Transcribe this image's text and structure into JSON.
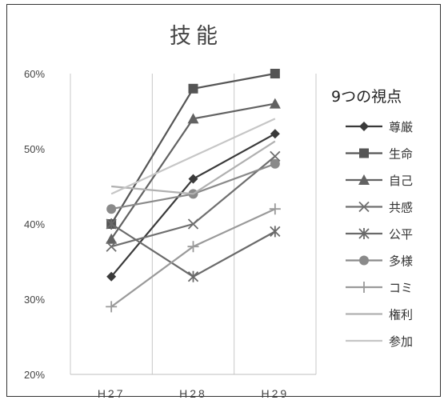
{
  "chart_data": {
    "type": "line",
    "title": "技能",
    "categories": [
      "H27",
      "H28",
      "H29"
    ],
    "ylim": [
      0.2,
      0.6
    ],
    "yticks": [
      "20%",
      "30%",
      "40%",
      "50%",
      "60%"
    ],
    "grid": "vertical",
    "legend_placement": "right",
    "legend_title": "9つの視点",
    "series": [
      {
        "name": "尊厳",
        "values": [
          0.33,
          0.46,
          0.52
        ],
        "marker": "diamond",
        "color": "#3a3a3a"
      },
      {
        "name": "生命",
        "values": [
          0.4,
          0.58,
          0.6
        ],
        "marker": "square",
        "color": "#555555"
      },
      {
        "name": "自己",
        "values": [
          0.38,
          0.54,
          0.56
        ],
        "marker": "triangle",
        "color": "#626262"
      },
      {
        "name": "共感",
        "values": [
          0.37,
          0.4,
          0.49
        ],
        "marker": "x",
        "color": "#6f6f6f"
      },
      {
        "name": "公平",
        "values": [
          0.4,
          0.33,
          0.39
        ],
        "marker": "star",
        "color": "#6a6a6a"
      },
      {
        "name": "多様",
        "values": [
          0.42,
          0.44,
          0.48
        ],
        "marker": "circle",
        "color": "#8a8a8a"
      },
      {
        "name": "コミ",
        "values": [
          0.29,
          0.37,
          0.42
        ],
        "marker": "plus",
        "color": "#9a9a9a"
      },
      {
        "name": "権利",
        "values": [
          0.45,
          0.44,
          0.51
        ],
        "marker": "none",
        "color": "#b0b0b0"
      },
      {
        "name": "参加",
        "values": [
          0.44,
          0.49,
          0.54
        ],
        "marker": "none",
        "color": "#c6c6c6"
      }
    ]
  }
}
